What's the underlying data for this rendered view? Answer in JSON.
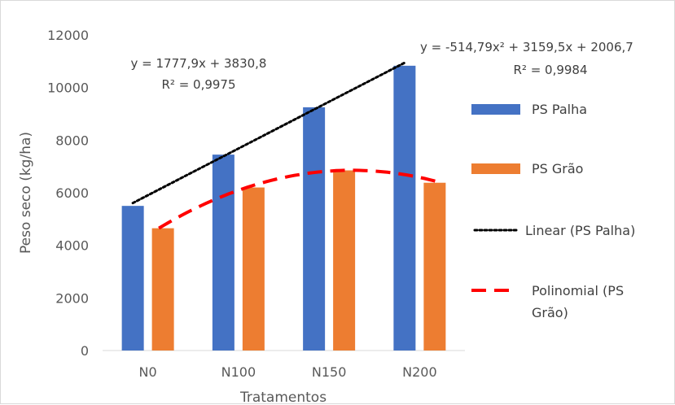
{
  "chart_data": {
    "type": "bar",
    "xlabel": "Tratamentos",
    "ylabel": "Peso seco (kg/ha)",
    "categories": [
      "N0",
      "N100",
      "N150",
      "N200"
    ],
    "ylim": [
      0,
      12000
    ],
    "yticks": [
      0,
      2000,
      4000,
      6000,
      8000,
      10000,
      12000
    ],
    "grid": false,
    "legend_position": "right",
    "series": [
      {
        "name": "PS Palha",
        "values": [
          5500,
          7450,
          9250,
          10830
        ],
        "color": "#4472c4"
      },
      {
        "name": "PS Grão",
        "values": [
          4650,
          6200,
          6850,
          6380
        ],
        "color": "#ed7d31"
      }
    ],
    "trendlines": [
      {
        "name": "Linear (PS Palha)",
        "series": "PS Palha",
        "kind": "linear",
        "coefficients": [
          1777.9,
          3830.8
        ],
        "color": "#000000",
        "equation": "y = 1777,9x + 3830,8",
        "r2": "R² = 0,9975"
      },
      {
        "name": "Polinomial (PS Grão)",
        "series": "PS Grão",
        "kind": "poly2",
        "coefficients": [
          -514.79,
          3159.5,
          2006.7
        ],
        "color": "#ff0000",
        "equation": "y = -514,79x² + 3159,5x + 2006,7",
        "r2": "R² = 0,9984"
      }
    ],
    "legend": [
      {
        "label": "PS Palha",
        "kind": "bar",
        "color": "#4472c4"
      },
      {
        "label": "PS Grão",
        "kind": "bar",
        "color": "#ed7d31"
      },
      {
        "label": "Linear (PS Palha)",
        "kind": "dotted",
        "color": "#000000"
      },
      {
        "label_lines": [
          "Polinomial (PS",
          "Grão)"
        ],
        "kind": "dashed",
        "color": "#ff0000"
      }
    ]
  }
}
